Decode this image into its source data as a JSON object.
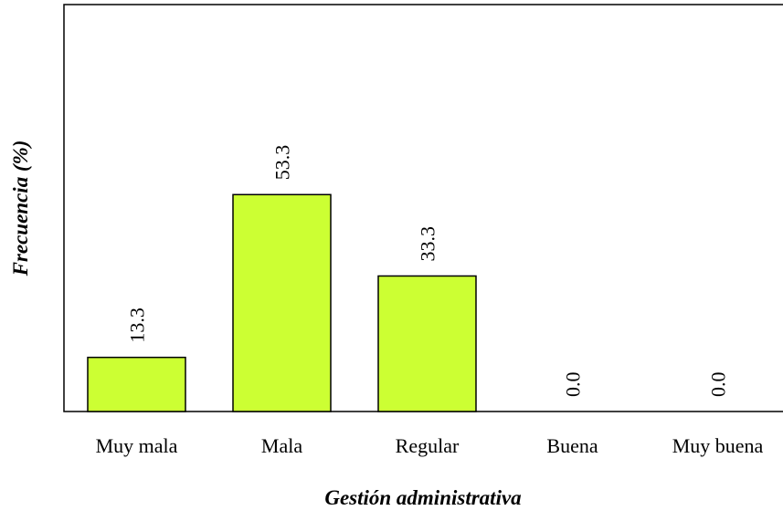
{
  "chart_data": {
    "type": "bar",
    "x_label": "Gestión administrativa",
    "y_label": "Frecuencia (%)",
    "categories": [
      "Muy mala",
      "Mala",
      "Regular",
      "Buena",
      "Muy buena"
    ],
    "values": [
      13.3,
      53.3,
      33.3,
      0,
      0
    ],
    "value_labels": [
      "13.3",
      "53.3",
      "33.3",
      "0.0",
      "0.0"
    ],
    "color": "#ccff33",
    "ylim": [
      0,
      100
    ]
  }
}
